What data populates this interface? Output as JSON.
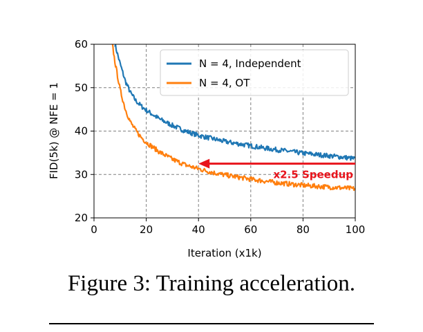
{
  "caption": "Figure 3: Training acceleration.",
  "chart_data": {
    "type": "line",
    "title": "",
    "xlabel": "Iteration (x1k)",
    "ylabel": "FID(5k) @ NFE = 1",
    "xlim": [
      0,
      100
    ],
    "ylim": [
      20,
      60
    ],
    "xticks": [
      0,
      20,
      40,
      60,
      80,
      100
    ],
    "yticks": [
      20,
      30,
      40,
      50,
      60
    ],
    "grid": "dashed",
    "legend": "top-right",
    "series": [
      {
        "name": "N = 4, Independent",
        "color": "#1f77b4",
        "x": [
          8,
          10,
          12,
          14,
          16,
          18,
          20,
          25,
          30,
          35,
          40,
          45,
          50,
          55,
          60,
          65,
          70,
          75,
          80,
          85,
          90,
          95,
          100
        ],
        "y": [
          60,
          55.5,
          51.5,
          48.8,
          47,
          45.8,
          44.8,
          42.8,
          41.3,
          40,
          39,
          38.3,
          37.6,
          37.1,
          36.6,
          36.1,
          35.7,
          35.3,
          34.9,
          34.6,
          34.3,
          34,
          33.6
        ]
      },
      {
        "name": "N = 4, OT",
        "color": "#ff7f0e",
        "x": [
          7,
          8,
          10,
          12,
          14,
          16,
          18,
          20,
          25,
          30,
          35,
          40,
          45,
          50,
          55,
          60,
          65,
          70,
          75,
          80,
          85,
          90,
          95,
          100
        ],
        "y": [
          60,
          56,
          49.5,
          45,
          42,
          40.1,
          38.6,
          37.4,
          35.2,
          33.5,
          32.2,
          31.3,
          30.5,
          29.9,
          29.4,
          28.9,
          28.5,
          28.1,
          27.8,
          27.5,
          27.3,
          27.1,
          26.9,
          26.7
        ]
      }
    ],
    "annotation": {
      "text": "x2.5 Speedup",
      "arrow_from": [
        100,
        32.5
      ],
      "arrow_to": [
        40,
        32.5
      ],
      "color": "#e8141c"
    }
  }
}
